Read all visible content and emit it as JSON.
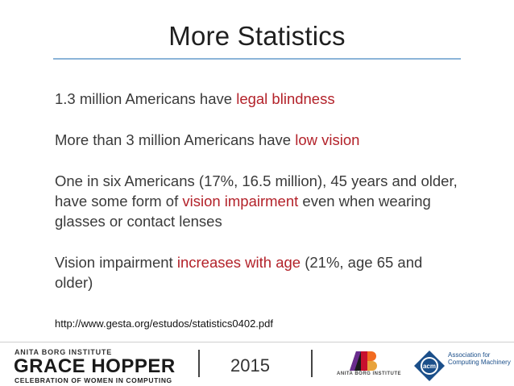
{
  "slide": {
    "title": "More Statistics"
  },
  "paragraphs": [
    {
      "before": "1.3 million Americans have ",
      "highlight": "legal blindness",
      "after": ""
    },
    {
      "before": "More than 3 million Americans have ",
      "highlight": "low vision",
      "after": ""
    },
    {
      "before": "One in six Americans (17%, 16.5 million), 45 years and older, have some form of ",
      "highlight": "vision impairment",
      "after": " even when wearing glasses or contact lenses"
    },
    {
      "before": "Vision impairment ",
      "highlight": "increases with age",
      "after": " (21%, age 65 and older)"
    }
  ],
  "source_url": "http://www.gesta.org/estudos/statistics0402.pdf",
  "footer": {
    "abi_small": "ANITA BORG INSTITUTE",
    "gh_title": "GRACE HOPPER",
    "gh_subtitle": "CELEBRATION OF WOMEN IN COMPUTING",
    "year": "2015",
    "abi_logo_text": "ANITA BORG INSTITUTE",
    "acm_text": "Association for Computing Machinery",
    "acm_badge": "acm"
  },
  "colors": {
    "highlight": "#b3222a",
    "rule": "#8cb4d8",
    "acm_blue": "#1b4f8a"
  },
  "icons": {
    "abi_logo": "abi-logo-icon",
    "acm_logo": "acm-logo-icon"
  }
}
